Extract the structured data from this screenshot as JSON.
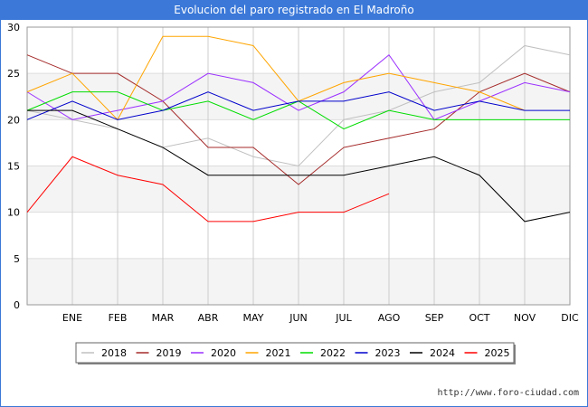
{
  "title": "Evolucion del paro registrado en El Madroño",
  "credit": "http://www.foro-ciudad.com",
  "chart_data": {
    "type": "line",
    "title": "Evolucion del paro registrado en El Madroño",
    "categories": [
      "",
      "ENE",
      "FEB",
      "MAR",
      "ABR",
      "MAY",
      "JUN",
      "JUL",
      "AGO",
      "SEP",
      "OCT",
      "NOV",
      "DIC"
    ],
    "ylim": [
      0,
      30
    ],
    "yticks": [
      0,
      5,
      10,
      15,
      20,
      25,
      30
    ],
    "grid": true,
    "legend_position": "bottom",
    "series": [
      {
        "name": "2018",
        "color": "#c0c0c0",
        "values": [
          21,
          20,
          19,
          17,
          18,
          16,
          15,
          20,
          21,
          23,
          24,
          28,
          27
        ]
      },
      {
        "name": "2019",
        "color": "#a52a2a",
        "values": [
          27,
          25,
          25,
          22,
          17,
          17,
          13,
          17,
          18,
          19,
          23,
          25,
          23
        ]
      },
      {
        "name": "2020",
        "color": "#9b30ff",
        "values": [
          23,
          20,
          21,
          22,
          25,
          24,
          21,
          23,
          27,
          20,
          22,
          24,
          23
        ]
      },
      {
        "name": "2021",
        "color": "#ffa500",
        "values": [
          23,
          25,
          20,
          29,
          29,
          28,
          22,
          24,
          25,
          24,
          23,
          21,
          null
        ]
      },
      {
        "name": "2022",
        "color": "#00dd00",
        "values": [
          21,
          23,
          23,
          21,
          22,
          20,
          22,
          19,
          21,
          20,
          20,
          20,
          20
        ]
      },
      {
        "name": "2023",
        "color": "#0000cc",
        "values": [
          20,
          22,
          20,
          21,
          23,
          21,
          22,
          22,
          23,
          21,
          22,
          21,
          21
        ]
      },
      {
        "name": "2024",
        "color": "#000000",
        "values": [
          21,
          21,
          19,
          17,
          14,
          14,
          14,
          14,
          15,
          16,
          14,
          9,
          10
        ]
      },
      {
        "name": "2025",
        "color": "#ff0000",
        "values": [
          10,
          16,
          14,
          13,
          9,
          9,
          10,
          10,
          12,
          null,
          null,
          null,
          null
        ]
      }
    ]
  }
}
